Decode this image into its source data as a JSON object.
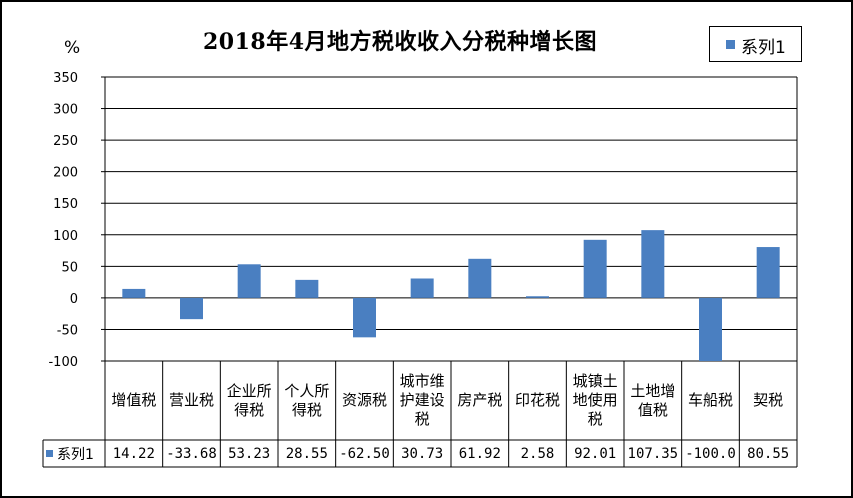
{
  "chart_data": {
    "type": "bar",
    "title": "2018年4月地方税收收入分税种增长图",
    "ylabel": "%",
    "ylim": [
      -100,
      350
    ],
    "yticks": [
      -100,
      -50,
      0,
      50,
      100,
      150,
      200,
      250,
      300,
      350
    ],
    "grid": true,
    "legend_position": "top-right",
    "categories": [
      "增值税",
      "营业税",
      "企业所得税",
      "个人所得税",
      "资源税",
      "城市维护建设税",
      "房产税",
      "印花税",
      "城镇土地使用税",
      "土地增值税",
      "车船税",
      "契税"
    ],
    "category_lines": [
      [
        "增值税"
      ],
      [
        "营业税"
      ],
      [
        "企业所",
        "得税"
      ],
      [
        "个人所",
        "得税"
      ],
      [
        "资源税"
      ],
      [
        "城市维",
        "护建设",
        "税"
      ],
      [
        "房产税"
      ],
      [
        "印花税"
      ],
      [
        "城镇土",
        "地使用",
        "税"
      ],
      [
        "土地增",
        "值税"
      ],
      [
        "车船税"
      ],
      [
        "契税"
      ]
    ],
    "series": [
      {
        "name": "系列1",
        "values": [
          14.22,
          -33.68,
          53.23,
          28.55,
          -62.5,
          30.73,
          61.92,
          2.58,
          92.01,
          107.35,
          -100.0,
          80.55
        ],
        "labels": [
          "14.22",
          "-33.68",
          "53.23",
          "28.55",
          "-62.50",
          "30.73",
          "61.92",
          "2.58",
          "92.01",
          "107.35",
          "-100.0",
          "80.55"
        ]
      }
    ],
    "bar_color": "#4a7fc1"
  }
}
